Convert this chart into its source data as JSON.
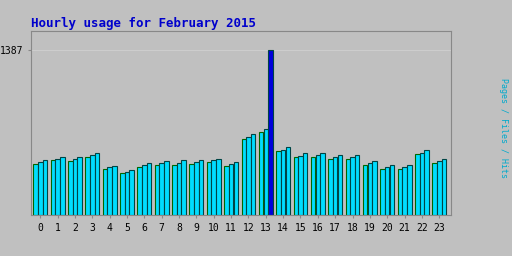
{
  "title": "Hourly usage for February 2015",
  "title_color": "#0000cc",
  "title_fontsize": 9,
  "background_color": "#c0c0c0",
  "hours": [
    0,
    1,
    2,
    3,
    4,
    5,
    6,
    7,
    8,
    9,
    10,
    11,
    12,
    13,
    14,
    15,
    16,
    17,
    18,
    19,
    20,
    21,
    22,
    23
  ],
  "pages": [
    430,
    460,
    455,
    490,
    385,
    355,
    405,
    420,
    425,
    430,
    445,
    415,
    640,
    700,
    535,
    485,
    490,
    470,
    470,
    425,
    385,
    385,
    510,
    440
  ],
  "files": [
    445,
    475,
    470,
    505,
    400,
    365,
    420,
    435,
    440,
    445,
    460,
    430,
    660,
    720,
    550,
    500,
    505,
    488,
    488,
    440,
    400,
    400,
    525,
    455
  ],
  "hits": [
    460,
    490,
    488,
    525,
    415,
    380,
    435,
    452,
    460,
    463,
    475,
    450,
    685,
    1387,
    570,
    520,
    525,
    505,
    505,
    458,
    418,
    418,
    545,
    470
  ],
  "bar_color_cyan": "#00ddff",
  "bar_color_blue": "#0000dd",
  "bar_color_green_edge": "#006600",
  "bar_edge_color_dark": "#004444",
  "ylim_max": 1550,
  "ytick_label": "1387",
  "ytick_value": 1387,
  "grid_color": "#d0d0d0",
  "figure_bg": "#c0c0c0",
  "plot_bg": "#c0c0c0"
}
